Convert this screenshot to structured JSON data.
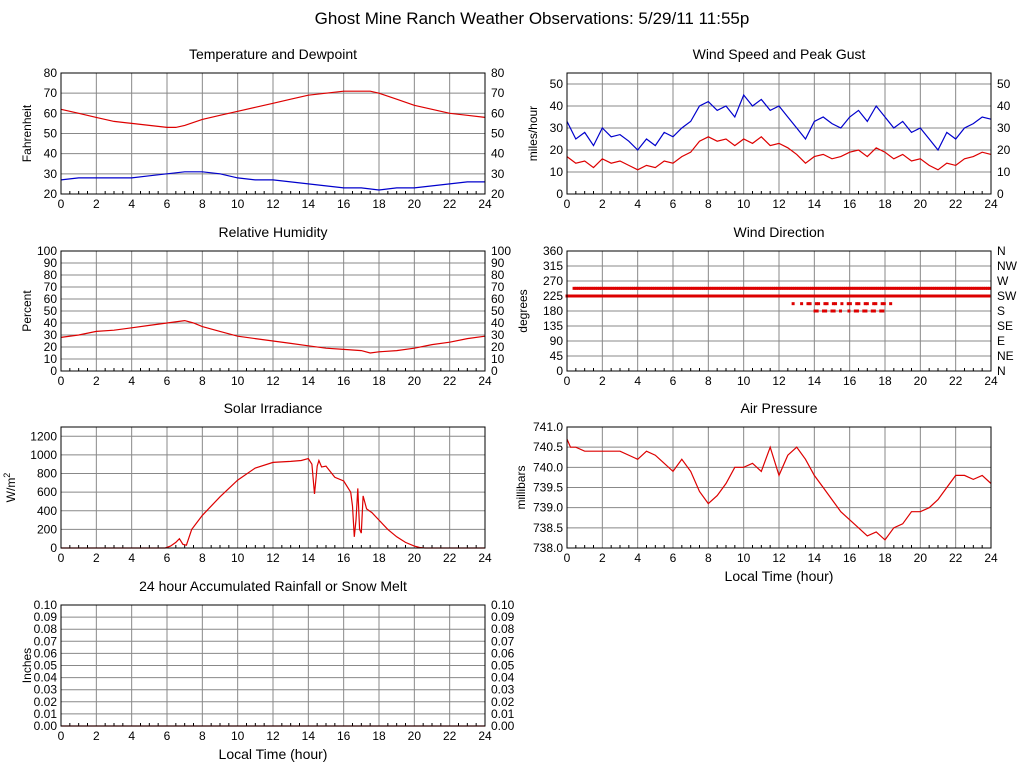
{
  "page_title": "Ghost Mine Ranch Weather Observations: 5/29/11 11:55p",
  "colors": {
    "red": "#dd0000",
    "blue": "#0000cc",
    "grid": "#888888"
  },
  "chart_data": [
    {
      "id": "temp",
      "type": "line",
      "title": "Temperature and Dewpoint",
      "ylabel": "Fahrenheit",
      "xlabel": "",
      "xlim": [
        0,
        24
      ],
      "ylim": [
        20,
        80
      ],
      "xticks": [
        "0",
        "2",
        "4",
        "6",
        "8",
        "10",
        "12",
        "14",
        "16",
        "18",
        "20",
        "22",
        "24"
      ],
      "yticks": [
        "20",
        "30",
        "40",
        "50",
        "60",
        "70",
        "80"
      ],
      "right_yticks": [
        "20",
        "30",
        "40",
        "50",
        "60",
        "70",
        "80"
      ],
      "grid": true,
      "series": [
        {
          "color": "#dd0000",
          "x": [
            0,
            1,
            2,
            3,
            4,
            5,
            6,
            6.5,
            7,
            8,
            9,
            10,
            11,
            12,
            13,
            14,
            15,
            16,
            17,
            17.5,
            18,
            19,
            20,
            21,
            22,
            23,
            24
          ],
          "y": [
            62,
            60,
            58,
            56,
            55,
            54,
            53,
            53,
            54,
            57,
            59,
            61,
            63,
            65,
            67,
            69,
            70,
            71,
            71,
            71,
            70,
            67,
            64,
            62,
            60,
            59,
            58
          ]
        },
        {
          "color": "#0000cc",
          "x": [
            0,
            1,
            2,
            3,
            4,
            5,
            6,
            7,
            8,
            9,
            10,
            11,
            12,
            13,
            14,
            15,
            16,
            17,
            18,
            19,
            20,
            21,
            22,
            23,
            24
          ],
          "y": [
            27,
            28,
            28,
            28,
            28,
            29,
            30,
            31,
            31,
            30,
            28,
            27,
            27,
            26,
            25,
            24,
            23,
            23,
            22,
            23,
            23,
            24,
            25,
            26,
            26
          ]
        }
      ]
    },
    {
      "id": "wind",
      "type": "line",
      "title": "Wind Speed and Peak Gust",
      "ylabel": "miles/hour",
      "xlabel": "",
      "xlim": [
        0,
        24
      ],
      "ylim": [
        0,
        55
      ],
      "xticks": [
        "0",
        "2",
        "4",
        "6",
        "8",
        "10",
        "12",
        "14",
        "16",
        "18",
        "20",
        "22",
        "24"
      ],
      "yticks": [
        "0",
        "10",
        "20",
        "30",
        "40",
        "50"
      ],
      "ytick_values": [
        0,
        10,
        20,
        30,
        40,
        50
      ],
      "right_yticks": [
        "0",
        "10",
        "20",
        "30",
        "40",
        "50"
      ],
      "grid": true,
      "series": [
        {
          "color": "#0000cc",
          "x": [
            0,
            0.5,
            1,
            1.5,
            2,
            2.5,
            3,
            3.5,
            4,
            4.5,
            5,
            5.5,
            6,
            6.5,
            7,
            7.5,
            8,
            8.5,
            9,
            9.5,
            10,
            10.5,
            11,
            11.5,
            12,
            12.5,
            13,
            13.5,
            14,
            14.5,
            15,
            15.5,
            16,
            16.5,
            17,
            17.5,
            18,
            18.5,
            19,
            19.5,
            20,
            20.5,
            21,
            21.5,
            22,
            22.5,
            23,
            23.5,
            24
          ],
          "y": [
            33,
            25,
            28,
            22,
            30,
            26,
            27,
            24,
            20,
            25,
            22,
            28,
            26,
            30,
            33,
            40,
            42,
            38,
            40,
            35,
            45,
            40,
            43,
            38,
            40,
            35,
            30,
            25,
            33,
            35,
            32,
            30,
            35,
            38,
            33,
            40,
            35,
            30,
            33,
            28,
            30,
            25,
            20,
            28,
            25,
            30,
            32,
            35,
            34
          ]
        },
        {
          "color": "#dd0000",
          "x": [
            0,
            0.5,
            1,
            1.5,
            2,
            2.5,
            3,
            3.5,
            4,
            4.5,
            5,
            5.5,
            6,
            6.5,
            7,
            7.5,
            8,
            8.5,
            9,
            9.5,
            10,
            10.5,
            11,
            11.5,
            12,
            12.5,
            13,
            13.5,
            14,
            14.5,
            15,
            15.5,
            16,
            16.5,
            17,
            17.5,
            18,
            18.5,
            19,
            19.5,
            20,
            20.5,
            21,
            21.5,
            22,
            22.5,
            23,
            23.5,
            24
          ],
          "y": [
            17,
            14,
            15,
            12,
            16,
            14,
            15,
            13,
            11,
            13,
            12,
            15,
            14,
            17,
            19,
            24,
            26,
            24,
            25,
            22,
            25,
            23,
            26,
            22,
            23,
            21,
            18,
            14,
            17,
            18,
            16,
            17,
            19,
            20,
            17,
            21,
            19,
            16,
            18,
            15,
            16,
            13,
            11,
            14,
            13,
            16,
            17,
            19,
            18
          ]
        }
      ]
    },
    {
      "id": "rh",
      "type": "line",
      "title": "Relative Humidity",
      "ylabel": "Percent",
      "xlabel": "",
      "xlim": [
        0,
        24
      ],
      "ylim": [
        0,
        100
      ],
      "xticks": [
        "0",
        "2",
        "4",
        "6",
        "8",
        "10",
        "12",
        "14",
        "16",
        "18",
        "20",
        "22",
        "24"
      ],
      "yticks": [
        "0",
        "10",
        "20",
        "30",
        "40",
        "50",
        "60",
        "70",
        "80",
        "90",
        "100"
      ],
      "right_yticks": [
        "0",
        "10",
        "20",
        "30",
        "40",
        "50",
        "60",
        "70",
        "80",
        "90",
        "100"
      ],
      "grid": true,
      "series": [
        {
          "color": "#dd0000",
          "x": [
            0,
            1,
            2,
            3,
            4,
            5,
            6,
            7,
            7.5,
            8,
            9,
            10,
            11,
            12,
            13,
            14,
            15,
            16,
            17,
            17.5,
            18,
            19,
            20,
            21,
            22,
            23,
            24
          ],
          "y": [
            28,
            30,
            33,
            34,
            36,
            38,
            40,
            42,
            40,
            37,
            33,
            29,
            27,
            25,
            23,
            21,
            19,
            18,
            17,
            15,
            16,
            17,
            19,
            22,
            24,
            27,
            29
          ]
        }
      ]
    },
    {
      "id": "wdir",
      "type": "scatter",
      "title": "Wind Direction",
      "ylabel": "degrees",
      "xlabel": "",
      "xlim": [
        0,
        24
      ],
      "ylim": [
        0,
        360
      ],
      "xticks": [
        "0",
        "2",
        "4",
        "6",
        "8",
        "10",
        "12",
        "14",
        "16",
        "18",
        "20",
        "22",
        "24"
      ],
      "yticks": [
        "0",
        "45",
        "90",
        "135",
        "180",
        "225",
        "270",
        "315",
        "360"
      ],
      "right_yticks": [
        "N",
        "NE",
        "E",
        "SE",
        "S",
        "SW",
        "W",
        "NW",
        "N"
      ],
      "grid": true,
      "bands": [
        {
          "value": 248,
          "from": 0.4,
          "to": 24
        },
        {
          "value": 225,
          "from": 0,
          "to": 24
        },
        {
          "value": 202,
          "from": 12.8,
          "to": 18.5
        },
        {
          "value": 180,
          "from": 13.8,
          "to": 18.2
        }
      ],
      "series": [
        {
          "color": "#dd0000"
        }
      ]
    },
    {
      "id": "solar",
      "type": "line",
      "title": "Solar Irradiance",
      "ylabel": "W/m",
      "ylabel_sup": "2",
      "xlabel": "",
      "xlim": [
        0,
        24
      ],
      "ylim": [
        0,
        1300
      ],
      "xticks": [
        "0",
        "2",
        "4",
        "6",
        "8",
        "10",
        "12",
        "14",
        "16",
        "18",
        "20",
        "22",
        "24"
      ],
      "yticks": [
        "0",
        "200",
        "400",
        "600",
        "800",
        "1000",
        "1200"
      ],
      "ytick_values": [
        0,
        200,
        400,
        600,
        800,
        1000,
        1200
      ],
      "grid": true,
      "series": [
        {
          "color": "#dd0000",
          "x": [
            0,
            5.9,
            6.2,
            6.5,
            6.7,
            6.9,
            7.1,
            7.4,
            8,
            9,
            10,
            11,
            12,
            13,
            13.6,
            14,
            14.2,
            14.35,
            14.5,
            14.6,
            14.75,
            15,
            15.5,
            16,
            16.4,
            16.5,
            16.6,
            16.7,
            16.8,
            16.9,
            17,
            17.1,
            17.3,
            17.6,
            18,
            18.5,
            19,
            19.5,
            20,
            20.3,
            20.6,
            24
          ],
          "y": [
            0,
            0,
            20,
            60,
            100,
            40,
            30,
            200,
            350,
            550,
            730,
            860,
            920,
            930,
            940,
            960,
            900,
            580,
            880,
            940,
            870,
            880,
            760,
            720,
            600,
            450,
            120,
            300,
            640,
            200,
            160,
            560,
            420,
            380,
            300,
            200,
            120,
            60,
            20,
            5,
            0,
            0
          ]
        }
      ]
    },
    {
      "id": "pressure",
      "type": "line",
      "title": "Air Pressure",
      "ylabel": "millibars",
      "xlabel": "Local Time (hour)",
      "xlim": [
        0,
        24
      ],
      "ylim": [
        738.0,
        741.0
      ],
      "xticks": [
        "0",
        "2",
        "4",
        "6",
        "8",
        "10",
        "12",
        "14",
        "16",
        "18",
        "20",
        "22",
        "24"
      ],
      "yticks": [
        "738.0",
        "738.5",
        "739.0",
        "739.5",
        "740.0",
        "740.5",
        "741.0"
      ],
      "ytick_values": [
        738.0,
        738.5,
        739.0,
        739.5,
        740.0,
        740.5,
        741.0
      ],
      "grid": true,
      "series": [
        {
          "color": "#dd0000",
          "x": [
            0,
            0.2,
            0.5,
            1,
            2,
            3,
            4,
            4.5,
            5,
            5.5,
            6,
            6.5,
            7,
            7.5,
            8,
            8.5,
            9,
            9.5,
            10,
            10.5,
            11,
            11.5,
            12,
            12.5,
            13,
            13.5,
            14,
            14.5,
            15,
            15.5,
            16,
            16.5,
            17,
            17.5,
            18,
            18.5,
            19,
            19.5,
            20,
            20.5,
            21,
            21.5,
            22,
            22.5,
            23,
            23.5,
            24
          ],
          "y": [
            740.7,
            740.5,
            740.5,
            740.4,
            740.4,
            740.4,
            740.2,
            740.4,
            740.3,
            740.1,
            739.9,
            740.2,
            739.9,
            739.4,
            739.1,
            739.3,
            739.6,
            740.0,
            740.0,
            740.1,
            739.9,
            740.5,
            739.8,
            740.3,
            740.5,
            740.2,
            739.8,
            739.5,
            739.2,
            738.9,
            738.7,
            738.5,
            738.3,
            738.4,
            738.2,
            738.5,
            738.6,
            738.9,
            738.9,
            739.0,
            739.2,
            739.5,
            739.8,
            739.8,
            739.7,
            739.8,
            739.6
          ]
        }
      ]
    },
    {
      "id": "rain",
      "type": "line",
      "title": "24 hour Accumulated Rainfall or Snow Melt",
      "ylabel": "Inches",
      "xlabel": "Local Time (hour)",
      "xlim": [
        0,
        24
      ],
      "ylim": [
        0,
        0.1
      ],
      "xticks": [
        "0",
        "2",
        "4",
        "6",
        "8",
        "10",
        "12",
        "14",
        "16",
        "18",
        "20",
        "22",
        "24"
      ],
      "yticks": [
        "0.00",
        "0.01",
        "0.02",
        "0.03",
        "0.04",
        "0.05",
        "0.06",
        "0.07",
        "0.08",
        "0.09",
        "0.10"
      ],
      "ytick_values": [
        0,
        0.01,
        0.02,
        0.03,
        0.04,
        0.05,
        0.06,
        0.07,
        0.08,
        0.09,
        0.1
      ],
      "right_yticks": [
        "0.00",
        "0.01",
        "0.02",
        "0.03",
        "0.04",
        "0.05",
        "0.06",
        "0.07",
        "0.08",
        "0.09",
        "0.10"
      ],
      "grid": true,
      "series": [
        {
          "color": "#dd0000",
          "x": [
            0,
            24
          ],
          "y": [
            0,
            0
          ]
        }
      ]
    }
  ]
}
